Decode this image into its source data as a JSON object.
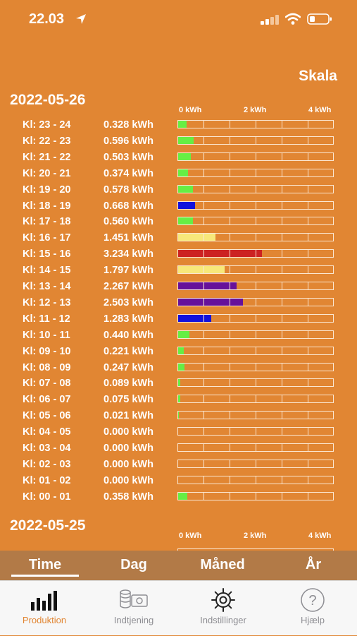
{
  "status_bar": {
    "time": "22.03"
  },
  "header": {
    "scale_button": "Skala"
  },
  "scale": {
    "max_kwh": 6,
    "labels": [
      "0 kWh",
      "2 kWh",
      "4 kWh"
    ],
    "label_values": [
      0,
      2,
      4
    ]
  },
  "days": [
    {
      "date": "2022-05-26",
      "hours": [
        {
          "label": "Kl: 23 - 24",
          "value": "0.328 kWh",
          "kwh": 0.328,
          "color": "#66ee44"
        },
        {
          "label": "Kl: 22 - 23",
          "value": "0.596 kWh",
          "kwh": 0.596,
          "color": "#66ee44"
        },
        {
          "label": "Kl: 21 - 22",
          "value": "0.503 kWh",
          "kwh": 0.503,
          "color": "#66ee44"
        },
        {
          "label": "Kl: 20 - 21",
          "value": "0.374 kWh",
          "kwh": 0.374,
          "color": "#66ee44"
        },
        {
          "label": "Kl: 19 - 20",
          "value": "0.578 kWh",
          "kwh": 0.578,
          "color": "#66ee44"
        },
        {
          "label": "Kl: 18 - 19",
          "value": "0.668 kWh",
          "kwh": 0.668,
          "color": "#1111dd"
        },
        {
          "label": "Kl: 17 - 18",
          "value": "0.560 kWh",
          "kwh": 0.56,
          "color": "#66ee44"
        },
        {
          "label": "Kl: 16 - 17",
          "value": "1.451 kWh",
          "kwh": 1.451,
          "color": "#f7e87a"
        },
        {
          "label": "Kl: 15 - 16",
          "value": "3.234 kWh",
          "kwh": 3.234,
          "color": "#cc2222"
        },
        {
          "label": "Kl: 14 - 15",
          "value": "1.797 kWh",
          "kwh": 1.797,
          "color": "#f7e87a"
        },
        {
          "label": "Kl: 13 - 14",
          "value": "2.267 kWh",
          "kwh": 2.267,
          "color": "#66119a"
        },
        {
          "label": "Kl: 12 - 13",
          "value": "2.503 kWh",
          "kwh": 2.503,
          "color": "#66119a"
        },
        {
          "label": "Kl: 11 - 12",
          "value": "1.283 kWh",
          "kwh": 1.283,
          "color": "#1111dd"
        },
        {
          "label": "Kl: 10 - 11",
          "value": "0.440 kWh",
          "kwh": 0.44,
          "color": "#66ee44"
        },
        {
          "label": "Kl: 09 - 10",
          "value": "0.221 kWh",
          "kwh": 0.221,
          "color": "#66ee44"
        },
        {
          "label": "Kl: 08 - 09",
          "value": "0.247 kWh",
          "kwh": 0.247,
          "color": "#66ee44"
        },
        {
          "label": "Kl: 07 - 08",
          "value": "0.089 kWh",
          "kwh": 0.089,
          "color": "#66ee44"
        },
        {
          "label": "Kl: 06 - 07",
          "value": "0.075 kWh",
          "kwh": 0.075,
          "color": "#66ee44"
        },
        {
          "label": "Kl: 05 - 06",
          "value": "0.021 kWh",
          "kwh": 0.021,
          "color": "#66ee44"
        },
        {
          "label": "Kl: 04 - 05",
          "value": "0.000 kWh",
          "kwh": 0,
          "color": "#66ee44"
        },
        {
          "label": "Kl: 03 - 04",
          "value": "0.000 kWh",
          "kwh": 0,
          "color": "#66ee44"
        },
        {
          "label": "Kl: 02 - 03",
          "value": "0.000 kWh",
          "kwh": 0,
          "color": "#66ee44"
        },
        {
          "label": "Kl: 01 - 02",
          "value": "0.000 kWh",
          "kwh": 0,
          "color": "#66ee44"
        },
        {
          "label": "Kl: 00 - 01",
          "value": "0.358 kWh",
          "kwh": 0.358,
          "color": "#66ee44"
        }
      ]
    },
    {
      "date": "2022-05-25",
      "hours": []
    }
  ],
  "period_tabs": [
    {
      "label": "Time",
      "active": true
    },
    {
      "label": "Dag",
      "active": false
    },
    {
      "label": "Måned",
      "active": false
    },
    {
      "label": "År",
      "active": false
    }
  ],
  "tab_bar": [
    {
      "label": "Produktion",
      "icon": "bar-chart-icon",
      "active": true
    },
    {
      "label": "Indtjening",
      "icon": "money-icon",
      "active": false
    },
    {
      "label": "Indstillinger",
      "icon": "gear-icon",
      "active": false
    },
    {
      "label": "Hjælp",
      "icon": "help-icon",
      "active": false
    }
  ],
  "colors": {
    "background": "#e18633",
    "tabs_bg": "#b27a47",
    "active_tab": "#e18633",
    "inactive_tab": "#8e8e93"
  }
}
